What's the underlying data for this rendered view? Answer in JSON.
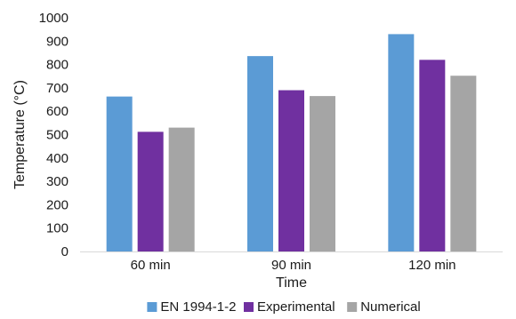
{
  "chart_data": {
    "type": "bar",
    "categories": [
      "60 min",
      "90 min",
      "120 min"
    ],
    "series": [
      {
        "name": "EN 1994-1-2",
        "color": "#5b9bd5",
        "values": [
          663,
          836,
          930
        ]
      },
      {
        "name": "Experimental",
        "color": "#7030a0",
        "values": [
          512,
          690,
          820
        ]
      },
      {
        "name": "Numerical",
        "color": "#a5a5a5",
        "values": [
          530,
          665,
          752
        ]
      }
    ],
    "title": "",
    "xlabel": "Time",
    "ylabel": "Temperature (°C)",
    "ylim": [
      0,
      1000
    ],
    "yticks": [
      0,
      100,
      200,
      300,
      400,
      500,
      600,
      700,
      800,
      900,
      1000
    ],
    "grid": false,
    "legend_position": "bottom"
  }
}
